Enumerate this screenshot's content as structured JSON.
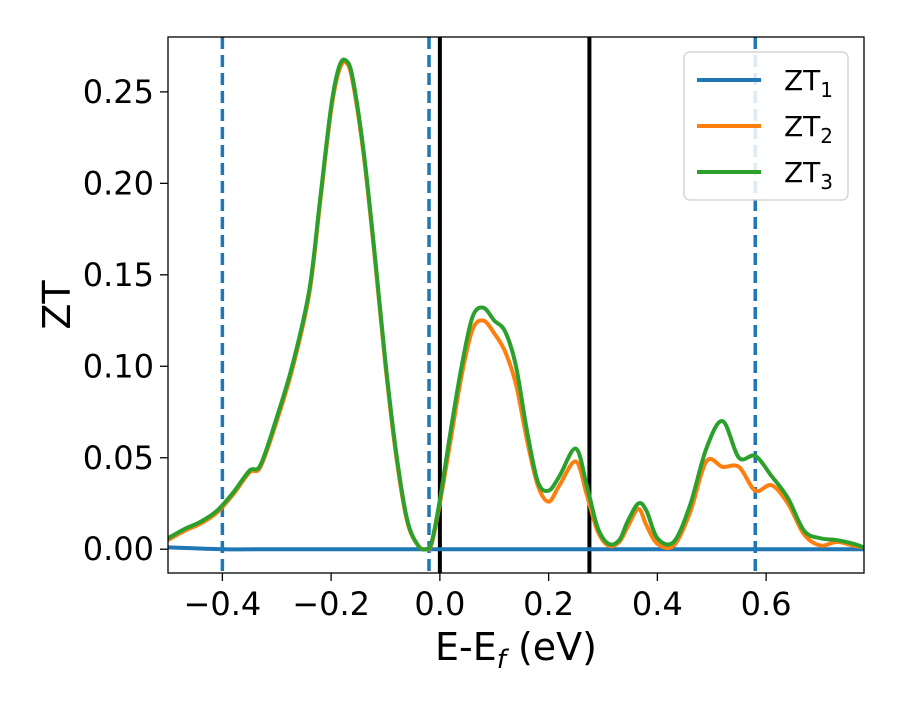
{
  "chart_data": {
    "type": "line",
    "xlabel": "E-E",
    "xlabel_sub": "f",
    "xlabel_unit": " (eV)",
    "ylabel": "ZT",
    "xlim": [
      -0.5,
      0.78
    ],
    "ylim": [
      -0.013,
      0.28
    ],
    "x_ticks": [
      -0.4,
      -0.2,
      0.0,
      0.2,
      0.4,
      0.6
    ],
    "x_tick_labels": [
      "−0.4",
      "−0.2",
      "0.0",
      "0.2",
      "0.4",
      "0.6"
    ],
    "y_ticks": [
      0.0,
      0.05,
      0.1,
      0.15,
      0.2,
      0.25
    ],
    "y_tick_labels": [
      "0.00",
      "0.05",
      "0.10",
      "0.15",
      "0.20",
      "0.25"
    ],
    "grid": false,
    "legend_position": "top-right",
    "series": [
      {
        "name": "ZT",
        "name_sub": "1",
        "color": "#1f77b4",
        "x": [
          -0.5,
          -0.4,
          -0.3,
          -0.2,
          -0.1,
          0.0,
          0.1,
          0.2,
          0.3,
          0.4,
          0.5,
          0.6,
          0.7,
          0.78
        ],
        "y": [
          0.001,
          0.0,
          0.0,
          0.0,
          0.0,
          0.0,
          0.0,
          0.0,
          0.0,
          0.0,
          0.0,
          0.0,
          0.0,
          0.0
        ]
      },
      {
        "name": "ZT",
        "name_sub": "2",
        "color": "#ff7f0e",
        "x": [
          -0.5,
          -0.47,
          -0.44,
          -0.41,
          -0.38,
          -0.35,
          -0.33,
          -0.3,
          -0.27,
          -0.24,
          -0.22,
          -0.2,
          -0.185,
          -0.172,
          -0.16,
          -0.14,
          -0.12,
          -0.1,
          -0.08,
          -0.06,
          -0.04,
          -0.025,
          -0.015,
          0.0,
          0.02,
          0.04,
          0.06,
          0.08,
          0.1,
          0.12,
          0.14,
          0.16,
          0.18,
          0.2,
          0.22,
          0.25,
          0.27,
          0.29,
          0.31,
          0.33,
          0.345,
          0.365,
          0.38,
          0.4,
          0.43,
          0.46,
          0.49,
          0.52,
          0.55,
          0.58,
          0.61,
          0.64,
          0.67,
          0.7,
          0.73,
          0.76,
          0.78
        ],
        "y": [
          0.005,
          0.01,
          0.014,
          0.02,
          0.03,
          0.042,
          0.045,
          0.07,
          0.1,
          0.14,
          0.19,
          0.24,
          0.262,
          0.266,
          0.255,
          0.215,
          0.16,
          0.1,
          0.05,
          0.015,
          0.002,
          0.0,
          0.003,
          0.025,
          0.06,
          0.095,
          0.12,
          0.125,
          0.118,
          0.108,
          0.09,
          0.06,
          0.035,
          0.026,
          0.035,
          0.048,
          0.03,
          0.01,
          0.002,
          0.004,
          0.012,
          0.022,
          0.013,
          0.003,
          0.002,
          0.02,
          0.048,
          0.045,
          0.045,
          0.032,
          0.035,
          0.025,
          0.008,
          0.002,
          0.004,
          0.002,
          0.001
        ]
      },
      {
        "name": "ZT",
        "name_sub": "3",
        "color": "#2ca02c",
        "x": [
          -0.5,
          -0.47,
          -0.44,
          -0.41,
          -0.38,
          -0.35,
          -0.33,
          -0.3,
          -0.27,
          -0.24,
          -0.22,
          -0.2,
          -0.185,
          -0.172,
          -0.16,
          -0.14,
          -0.12,
          -0.1,
          -0.08,
          -0.06,
          -0.04,
          -0.025,
          -0.015,
          0.0,
          0.02,
          0.04,
          0.06,
          0.08,
          0.1,
          0.12,
          0.14,
          0.16,
          0.18,
          0.2,
          0.22,
          0.25,
          0.27,
          0.29,
          0.31,
          0.33,
          0.345,
          0.365,
          0.38,
          0.4,
          0.43,
          0.46,
          0.49,
          0.52,
          0.55,
          0.58,
          0.61,
          0.64,
          0.67,
          0.7,
          0.73,
          0.76,
          0.78
        ],
        "y": [
          0.006,
          0.011,
          0.015,
          0.021,
          0.031,
          0.043,
          0.046,
          0.072,
          0.102,
          0.142,
          0.192,
          0.242,
          0.264,
          0.267,
          0.257,
          0.217,
          0.162,
          0.102,
          0.052,
          0.016,
          0.002,
          0.0,
          0.004,
          0.027,
          0.065,
          0.1,
          0.127,
          0.132,
          0.125,
          0.119,
          0.1,
          0.065,
          0.037,
          0.032,
          0.04,
          0.055,
          0.035,
          0.012,
          0.003,
          0.005,
          0.015,
          0.025,
          0.021,
          0.006,
          0.004,
          0.024,
          0.055,
          0.07,
          0.05,
          0.051,
          0.04,
          0.028,
          0.01,
          0.006,
          0.005,
          0.003,
          0.001
        ]
      }
    ],
    "vertical_lines": [
      {
        "x": -0.4,
        "style": "dashed",
        "color": "#1f77b4"
      },
      {
        "x": -0.02,
        "style": "dashed",
        "color": "#1f77b4"
      },
      {
        "x": 0.0,
        "style": "solid",
        "color": "#000000"
      },
      {
        "x": 0.275,
        "style": "solid",
        "color": "#000000"
      },
      {
        "x": 0.58,
        "style": "dashed",
        "color": "#1f77b4"
      }
    ]
  }
}
